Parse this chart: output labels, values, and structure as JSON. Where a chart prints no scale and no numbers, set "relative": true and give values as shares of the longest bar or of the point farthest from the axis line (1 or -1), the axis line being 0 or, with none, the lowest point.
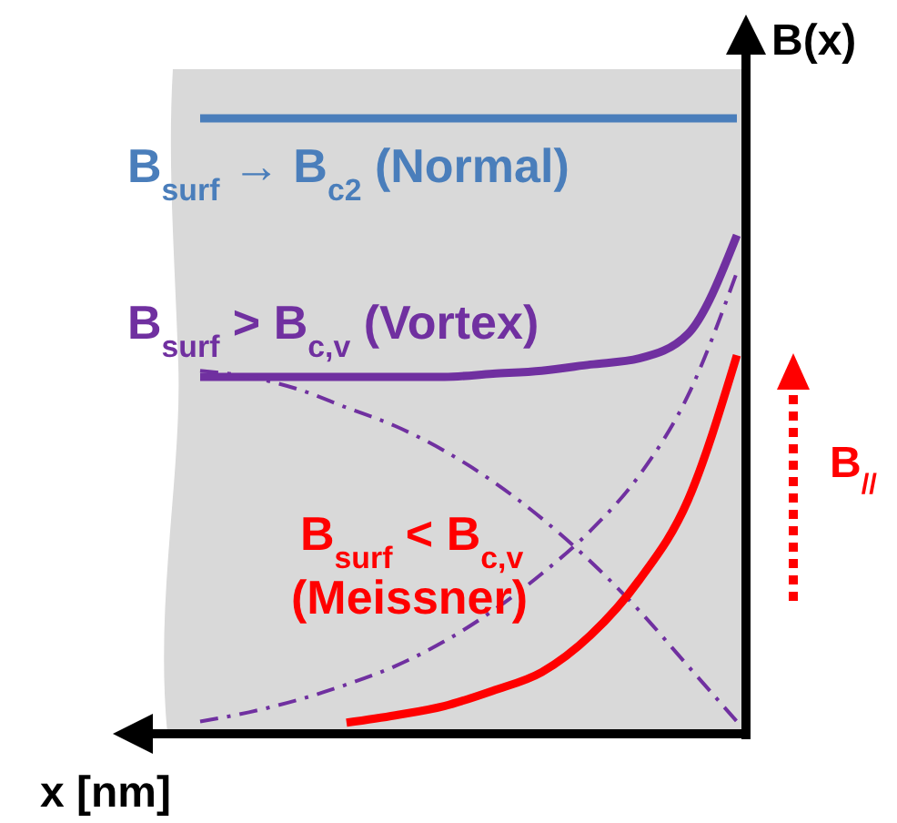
{
  "chart_data": {
    "type": "line",
    "relative": true,
    "xlabel": "x [nm]",
    "ylabel": "B(x)",
    "categories": [
      null,
      null,
      null,
      null,
      null,
      null,
      null,
      null,
      null,
      null,
      null,
      null
    ],
    "series": [
      {
        "name": "B$_{surf}$ → B$_{c2}$ (Normal)",
        "color": "#4a7ebb",
        "line_style": "solid",
        "values": [
          1,
          1,
          1,
          1,
          1,
          1,
          1,
          1,
          1,
          1,
          1,
          1
        ]
      },
      {
        "name": "B$_{surf}$ > B$_{c,v}$ (Vortex)",
        "color": "#7030a0",
        "line_style": "solid",
        "values": [
          0.58,
          0.58,
          0.58,
          0.58,
          0.58,
          0.58,
          0.585,
          0.59,
          0.6,
          0.61,
          0.65,
          0.81
        ]
      },
      {
        "color": "#7030a0",
        "line_style": "dashdot",
        "values": [
          0.02,
          0.035,
          0.055,
          0.08,
          0.11,
          0.15,
          0.2,
          0.26,
          0.33,
          0.42,
          0.55,
          0.75
        ]
      },
      {
        "color": "#7030a0",
        "line_style": "dashdot",
        "values": [
          0.59,
          0.58,
          0.56,
          0.53,
          0.5,
          0.46,
          0.41,
          0.35,
          0.28,
          0.2,
          0.11,
          0.02
        ]
      },
      {
        "name": "B$_{surf}$ < B$_{c,v}$ (Meissner)",
        "color": "#ff0000",
        "line_style": "solid",
        "values": [
          null,
          null,
          null,
          0.018,
          0.03,
          0.045,
          0.07,
          0.1,
          0.16,
          0.25,
          0.38,
          0.615
        ]
      }
    ],
    "annotations": [
      "B$_{//}$"
    ]
  }
}
